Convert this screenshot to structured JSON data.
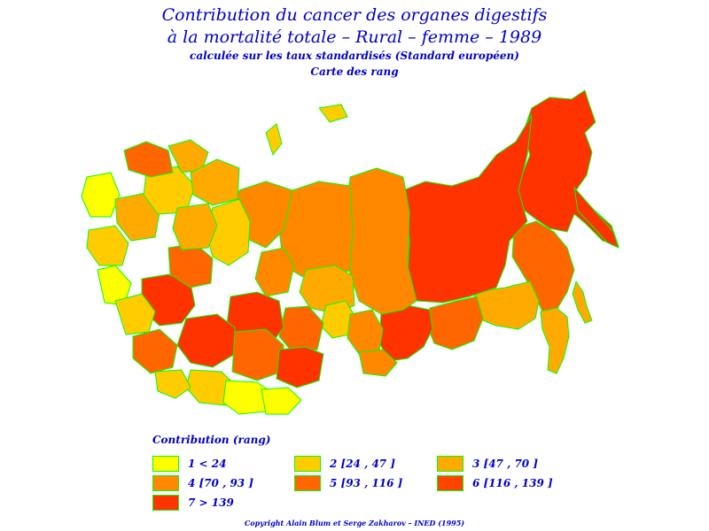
{
  "title_line1": "Contribution du cancer des organes digestifs",
  "title_line2": "à la mortalité totale  –  Rural  –  femme  –  1989",
  "subtitle": "calculée sur les taux standardisés (Standard européen)",
  "map_type": "Carte des rang",
  "legend": {
    "title": "Contribution  (rang)",
    "items": [
      {
        "label": "1  <  24",
        "color": "#ffff00"
      },
      {
        "label": "2 [24 , 47 ]",
        "color": "#ffcc00"
      },
      {
        "label": "3 [47 , 70 ]",
        "color": "#ffaa00"
      },
      {
        "label": "4 [70 , 93 ]",
        "color": "#ff8800"
      },
      {
        "label": "5 [93 , 116 ]",
        "color": "#ff6600"
      },
      {
        "label": "6 [116 , 139 ]",
        "color": "#ff4400"
      },
      {
        "label": "7  >  139",
        "color": "#ff3300"
      }
    ]
  },
  "copyright": "Copyright  Alain  Blum  et  Serge  Zakharov  –  INED  (1995)",
  "colors": {
    "text": "#0000cc",
    "region_border": "#00ff00"
  }
}
